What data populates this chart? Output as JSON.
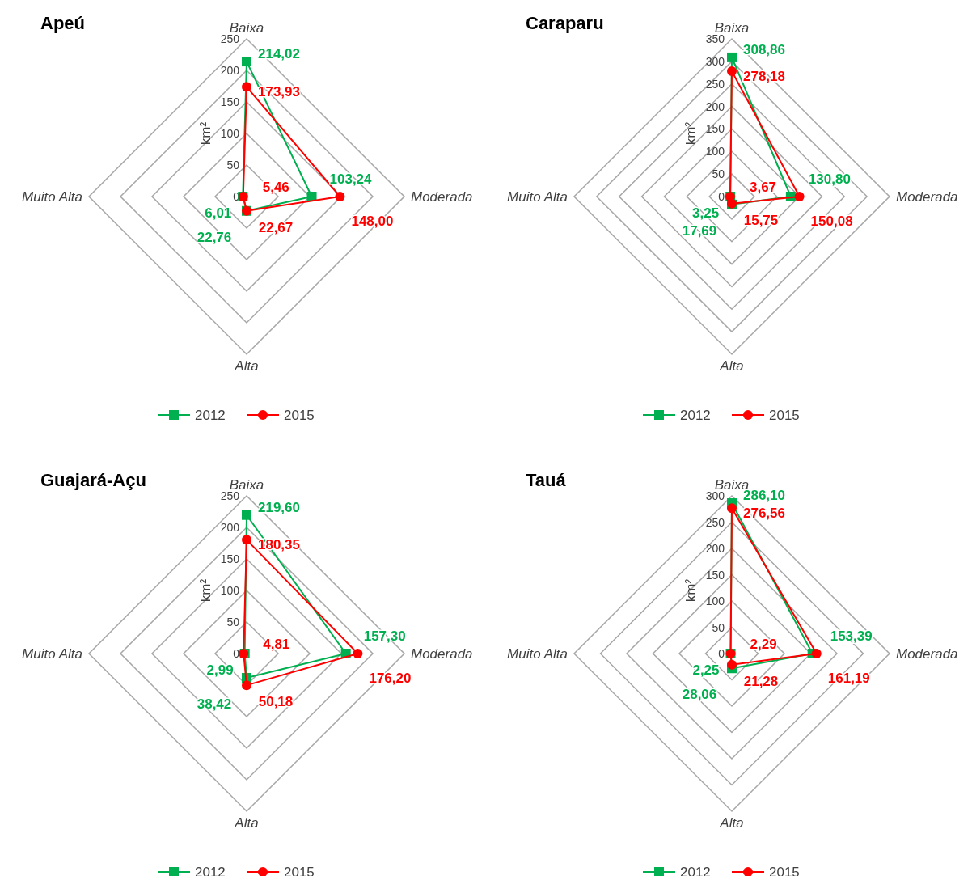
{
  "chart_data": [
    {
      "type": "radar",
      "title": "Apeú",
      "ylabel": "km²",
      "categories": [
        "Baixa",
        "Moderada",
        "Alta",
        "Muito Alta"
      ],
      "ylim": [
        0,
        250
      ],
      "yticks": [
        0,
        50,
        100,
        150,
        200,
        250
      ],
      "grid": true,
      "legend": "bottom",
      "series": [
        {
          "name": "2012",
          "color": "#00b050",
          "marker": "square",
          "values": [
            214.02,
            103.24,
            22.76,
            6.01
          ],
          "value_labels": [
            "214,02",
            "103,24",
            "22,76",
            "6,01"
          ]
        },
        {
          "name": "2015",
          "color": "#ff0000",
          "marker": "circle",
          "values": [
            173.93,
            148.0,
            22.67,
            5.46
          ],
          "value_labels": [
            "173,93",
            "148,00",
            "22,67",
            "5,46"
          ]
        }
      ]
    },
    {
      "type": "radar",
      "title": "Caraparu",
      "ylabel": "km²",
      "categories": [
        "Baixa",
        "Moderada",
        "Alta",
        "Muito Alta"
      ],
      "ylim": [
        0,
        350
      ],
      "yticks": [
        0,
        50,
        100,
        150,
        200,
        250,
        300,
        350
      ],
      "grid": true,
      "legend": "bottom",
      "series": [
        {
          "name": "2012",
          "color": "#00b050",
          "marker": "square",
          "values": [
            308.86,
            130.8,
            17.69,
            3.25
          ],
          "value_labels": [
            "308,86",
            "130,80",
            "17,69",
            "3,25"
          ]
        },
        {
          "name": "2015",
          "color": "#ff0000",
          "marker": "circle",
          "values": [
            278.18,
            150.08,
            15.75,
            3.67
          ],
          "value_labels": [
            "278,18",
            "150,08",
            "15,75",
            "3,67"
          ]
        }
      ]
    },
    {
      "type": "radar",
      "title": "Guajará-Açu",
      "ylabel": "km²",
      "categories": [
        "Baixa",
        "Moderada",
        "Alta",
        "Muito Alta"
      ],
      "ylim": [
        0,
        250
      ],
      "yticks": [
        0,
        50,
        100,
        150,
        200,
        250
      ],
      "grid": true,
      "legend": "bottom",
      "series": [
        {
          "name": "2012",
          "color": "#00b050",
          "marker": "square",
          "values": [
            219.6,
            157.3,
            38.42,
            2.99
          ],
          "value_labels": [
            "219,60",
            "157,30",
            "38,42",
            "2,99"
          ]
        },
        {
          "name": "2015",
          "color": "#ff0000",
          "marker": "circle",
          "values": [
            180.35,
            176.2,
            50.18,
            4.81
          ],
          "value_labels": [
            "180,35",
            "176,20",
            "50,18",
            "4,81"
          ]
        }
      ]
    },
    {
      "type": "radar",
      "title": "Tauá",
      "ylabel": "km²",
      "categories": [
        "Baixa",
        "Moderada",
        "Alta",
        "Muito Alta"
      ],
      "ylim": [
        0,
        300
      ],
      "yticks": [
        0,
        50,
        100,
        150,
        200,
        250,
        300
      ],
      "grid": true,
      "legend": "bottom",
      "series": [
        {
          "name": "2012",
          "color": "#00b050",
          "marker": "square",
          "values": [
            286.1,
            153.39,
            28.06,
            2.25
          ],
          "value_labels": [
            "286,10",
            "153,39",
            "28,06",
            "2,25"
          ]
        },
        {
          "name": "2015",
          "color": "#ff0000",
          "marker": "circle",
          "values": [
            276.56,
            161.19,
            21.28,
            2.29
          ],
          "value_labels": [
            "276,56",
            "161,19",
            "21,28",
            "2,29"
          ]
        }
      ]
    }
  ]
}
